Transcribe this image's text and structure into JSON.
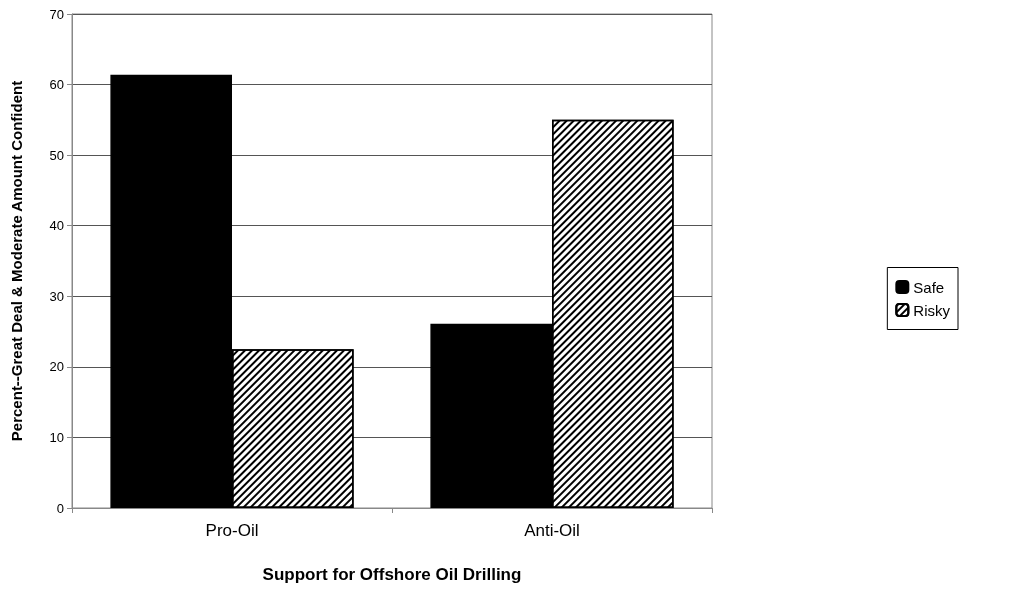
{
  "chart_data": {
    "type": "bar",
    "xlabel": "Support for Offshore Oil Drilling",
    "ylabel": "Percent--Great Deal & Moderate Amount Confident",
    "categories": [
      "Pro-Oil",
      "Anti-Oil"
    ],
    "series": [
      {
        "name": "Safe",
        "color": "#000000",
        "values": [
          61.4,
          26.1
        ]
      },
      {
        "name": "Risky",
        "color": "#ffffff",
        "values": [
          22.5,
          55.0
        ]
      }
    ],
    "ylim": [
      0,
      70
    ],
    "yticks": [
      0,
      10,
      20,
      30,
      40,
      50,
      60,
      70
    ],
    "grid": "y",
    "legend": "right"
  }
}
